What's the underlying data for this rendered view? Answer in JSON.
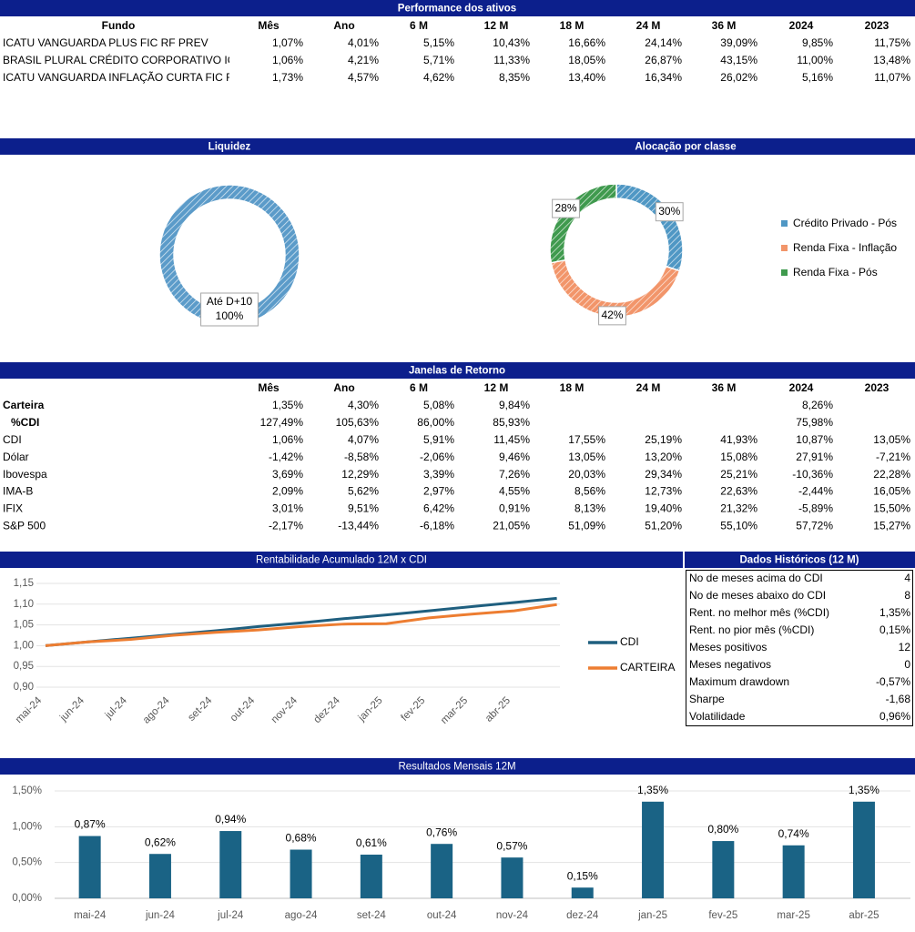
{
  "performance": {
    "title": "Performance dos ativos",
    "columns": [
      "Fundo",
      "Mês",
      "Ano",
      "6 M",
      "12 M",
      "18 M",
      "24 M",
      "36 M",
      "2024",
      "2023"
    ],
    "rows": [
      [
        "ICATU VANGUARDA PLUS FIC RF PREV",
        "1,07%",
        "4,01%",
        "5,15%",
        "10,43%",
        "16,66%",
        "24,14%",
        "39,09%",
        "9,85%",
        "11,75%"
      ],
      [
        "BRASIL PLURAL CRÉDITO CORPORATIVO ICA",
        "1,06%",
        "4,21%",
        "5,71%",
        "11,33%",
        "18,05%",
        "26,87%",
        "43,15%",
        "11,00%",
        "13,48%"
      ],
      [
        "ICATU VANGUARDA INFLAÇÃO CURTA FIC R",
        "1,73%",
        "4,57%",
        "4,62%",
        "8,35%",
        "13,40%",
        "16,34%",
        "26,02%",
        "5,16%",
        "11,07%"
      ]
    ]
  },
  "chart_data": [
    {
      "type": "pie",
      "title": "Liquidez",
      "categories": [
        "Até D+10"
      ],
      "values": [
        100
      ],
      "value_labels": [
        "100%"
      ],
      "colors": [
        "#5b9bc9"
      ]
    },
    {
      "type": "pie",
      "title": "Alocação por classe",
      "categories": [
        "Crédito Privado - Pós",
        "Renda Fixa - Inflação",
        "Renda Fixa - Pós"
      ],
      "values": [
        30,
        42,
        28
      ],
      "value_labels": [
        "30%",
        "42%",
        "28%"
      ],
      "colors": [
        "#4f97c4",
        "#f2956a",
        "#3f9a4e"
      ],
      "legend": "right"
    },
    {
      "type": "line",
      "title": "Rentabilidade Acumulado 12M x CDI",
      "categories": [
        "mai-24",
        "jun-24",
        "jul-24",
        "ago-24",
        "set-24",
        "out-24",
        "nov-24",
        "dez-24",
        "jan-25",
        "fev-25",
        "mar-25",
        "abr-25",
        null
      ],
      "series": [
        {
          "name": "CDI",
          "color": "#1f5f7f",
          "values": [
            1.0,
            1.009,
            1.018,
            1.027,
            1.036,
            1.046,
            1.055,
            1.065,
            1.074,
            1.084,
            1.094,
            1.104,
            1.114
          ]
        },
        {
          "name": "CARTEIRA",
          "color": "#ed7d31",
          "values": [
            1.0,
            1.009,
            1.015,
            1.025,
            1.032,
            1.038,
            1.046,
            1.052,
            1.053,
            1.067,
            1.076,
            1.084,
            1.099
          ]
        }
      ],
      "ylim": [
        0.9,
        1.15
      ],
      "yticks": [
        {
          "value": 0.9,
          "label": "0,90"
        },
        {
          "value": 0.95,
          "label": "0,95"
        },
        {
          "value": 1.0,
          "label": "1,00"
        },
        {
          "value": 1.05,
          "label": "1,05"
        },
        {
          "value": 1.1,
          "label": "1,10"
        },
        {
          "value": 1.15,
          "label": "1,15"
        }
      ],
      "grid": true,
      "legend": "right"
    },
    {
      "type": "bar",
      "title": "Resultados Mensais 12M",
      "categories": [
        "mai-24",
        "jun-24",
        "jul-24",
        "ago-24",
        "set-24",
        "out-24",
        "nov-24",
        "dez-24",
        "jan-25",
        "fev-25",
        "mar-25",
        "abr-25"
      ],
      "values": [
        0.87,
        0.62,
        0.94,
        0.68,
        0.61,
        0.76,
        0.57,
        0.15,
        1.35,
        0.8,
        0.74,
        1.35
      ],
      "value_labels": [
        "0,87%",
        "0,62%",
        "0,94%",
        "0,68%",
        "0,61%",
        "0,76%",
        "0,57%",
        "0,15%",
        "1,35%",
        "0,80%",
        "0,74%",
        "1,35%"
      ],
      "color": "#1a6385",
      "ylim": [
        0,
        1.5
      ],
      "yticks": [
        {
          "value": 0,
          "label": "0,00%"
        },
        {
          "value": 0.5,
          "label": "0,50%"
        },
        {
          "value": 1.0,
          "label": "1,00%"
        },
        {
          "value": 1.5,
          "label": "1,50%"
        }
      ],
      "grid": true
    }
  ],
  "janelas": {
    "title": "Janelas de Retorno",
    "columns": [
      "Mês",
      "Ano",
      "6 M",
      "12 M",
      "18 M",
      "24 M",
      "36 M",
      "2024",
      "2023"
    ],
    "rows": [
      [
        "Carteira",
        "1,35%",
        "4,30%",
        "5,08%",
        "9,84%",
        null,
        null,
        null,
        "8,26%",
        null
      ],
      [
        "%CDI",
        "127,49%",
        "105,63%",
        "86,00%",
        "85,93%",
        null,
        null,
        null,
        "75,98%",
        null
      ],
      [
        "CDI",
        "1,06%",
        "4,07%",
        "5,91%",
        "11,45%",
        "17,55%",
        "25,19%",
        "41,93%",
        "10,87%",
        "13,05%"
      ],
      [
        "Dólar",
        "-1,42%",
        "-8,58%",
        "-2,06%",
        "9,46%",
        "13,05%",
        "13,20%",
        "15,08%",
        "27,91%",
        "-7,21%"
      ],
      [
        "Ibovespa",
        "3,69%",
        "12,29%",
        "3,39%",
        "7,26%",
        "20,03%",
        "29,34%",
        "25,21%",
        "-10,36%",
        "22,28%"
      ],
      [
        "IMA-B",
        "2,09%",
        "5,62%",
        "2,97%",
        "4,55%",
        "8,56%",
        "12,73%",
        "22,63%",
        "-2,44%",
        "16,05%"
      ],
      [
        "IFIX",
        "3,01%",
        "9,51%",
        "6,42%",
        "0,91%",
        "8,13%",
        "19,40%",
        "21,32%",
        "-5,89%",
        "15,50%"
      ],
      [
        "S&P 500",
        "-2,17%",
        "-13,44%",
        "-6,18%",
        "21,05%",
        "51,09%",
        "51,20%",
        "55,10%",
        "57,72%",
        "15,27%"
      ]
    ]
  },
  "dados": {
    "title": "Dados Históricos (12 M)",
    "rows": [
      [
        "No de meses acima do CDI",
        "4"
      ],
      [
        "No de meses abaixo do CDI",
        "8"
      ],
      [
        "Rent. no melhor mês (%CDI)",
        "1,35%"
      ],
      [
        "Rent. no pior mês (%CDI)",
        "0,15%"
      ],
      [
        "Meses positivos",
        "12"
      ],
      [
        "Meses negativos",
        "0"
      ],
      [
        "Maximum drawdown",
        "-0,57%"
      ],
      [
        "Sharpe",
        "-1,68"
      ],
      [
        "Volatilidade",
        "0,96%"
      ]
    ]
  }
}
